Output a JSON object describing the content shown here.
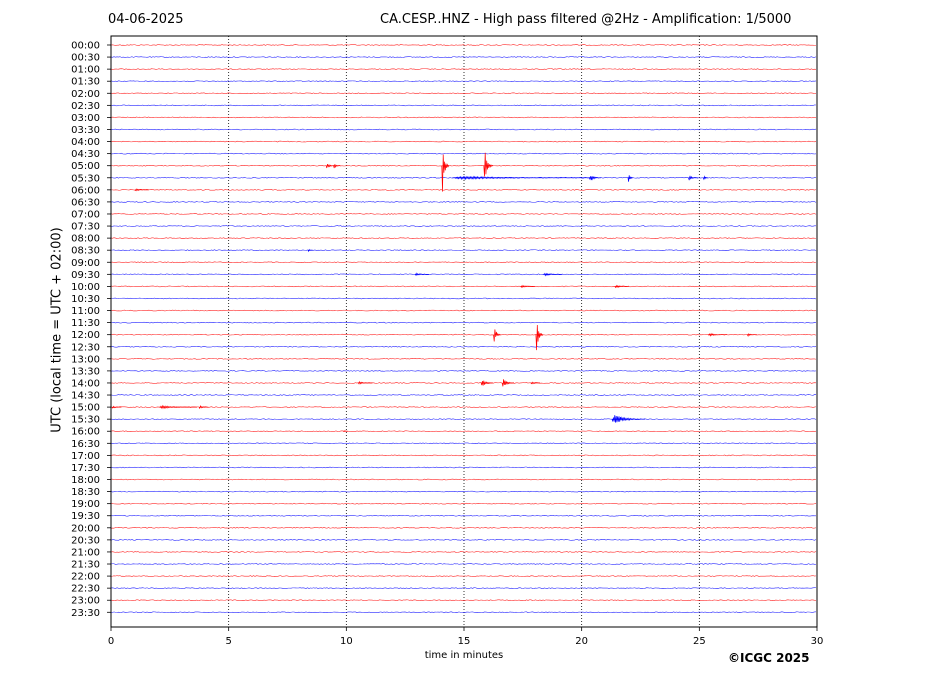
{
  "header": {
    "date": "04-06-2025",
    "title": "CA.CESP..HNZ - High pass filtered @2Hz - Amplification: 1/5000"
  },
  "footer": {
    "copyright": "©ICGC 2025"
  },
  "chart_data": {
    "type": "line",
    "title": "CA.CESP..HNZ - High pass filtered @2Hz - Amplification: 1/5000",
    "xlabel": "time in minutes",
    "ylabel": "UTC (local time = UTC + 02:00)",
    "xlim": [
      0,
      30
    ],
    "x_ticks": [
      0,
      5,
      10,
      15,
      20,
      25,
      30
    ],
    "grid": "vertical dotted lines at 5, 10, 15, 20, 25",
    "colors": {
      "odd_trace": "#ff0000",
      "even_trace": "#0000ff",
      "grid": "#000000"
    },
    "rows": [
      "00:00",
      "00:30",
      "01:00",
      "01:30",
      "02:00",
      "02:30",
      "03:00",
      "03:30",
      "04:00",
      "04:30",
      "05:00",
      "05:30",
      "06:00",
      "06:30",
      "07:00",
      "07:30",
      "08:00",
      "08:30",
      "09:00",
      "09:30",
      "10:00",
      "10:30",
      "11:00",
      "11:30",
      "12:00",
      "12:30",
      "13:00",
      "13:30",
      "14:00",
      "14:30",
      "15:00",
      "15:30",
      "16:00",
      "16:30",
      "17:00",
      "17:30",
      "18:00",
      "18:30",
      "19:00",
      "19:30",
      "20:00",
      "20:30",
      "21:00",
      "21:30",
      "22:00",
      "22:30",
      "23:00",
      "23:30"
    ],
    "events": [
      {
        "row": "05:00",
        "minute": 9.2,
        "amplitude": 4,
        "duration": 0.4
      },
      {
        "row": "05:00",
        "minute": 9.5,
        "amplitude": 4,
        "duration": 0.3
      },
      {
        "row": "05:00",
        "minute": 14.1,
        "amplitude": 40,
        "duration": 0.3
      },
      {
        "row": "05:00",
        "minute": 15.9,
        "amplitude": 24,
        "duration": 0.4
      },
      {
        "row": "05:30",
        "minute": 15.4,
        "amplitude": 2,
        "duration": 6.0
      },
      {
        "row": "05:30",
        "minute": 20.4,
        "amplitude": 5,
        "duration": 0.5
      },
      {
        "row": "05:30",
        "minute": 22.0,
        "amplitude": 8,
        "duration": 0.2
      },
      {
        "row": "05:30",
        "minute": 24.6,
        "amplitude": 4,
        "duration": 0.4
      },
      {
        "row": "05:30",
        "minute": 25.2,
        "amplitude": 4,
        "duration": 0.2
      },
      {
        "row": "06:00",
        "minute": 1.1,
        "amplitude": 2,
        "duration": 0.6
      },
      {
        "row": "08:30",
        "minute": 8.4,
        "amplitude": 2,
        "duration": 0.2
      },
      {
        "row": "09:30",
        "minute": 13.0,
        "amplitude": 2,
        "duration": 0.6
      },
      {
        "row": "09:30",
        "minute": 18.5,
        "amplitude": 2,
        "duration": 0.8
      },
      {
        "row": "10:00",
        "minute": 17.5,
        "amplitude": 2,
        "duration": 0.6
      },
      {
        "row": "10:00",
        "minute": 21.5,
        "amplitude": 2,
        "duration": 0.6
      },
      {
        "row": "12:00",
        "minute": 16.3,
        "amplitude": 14,
        "duration": 0.3
      },
      {
        "row": "12:00",
        "minute": 18.1,
        "amplitude": 24,
        "duration": 0.3
      },
      {
        "row": "12:00",
        "minute": 25.5,
        "amplitude": 2,
        "duration": 0.8
      },
      {
        "row": "12:00",
        "minute": 27.1,
        "amplitude": 2,
        "duration": 0.4
      },
      {
        "row": "14:00",
        "minute": 10.6,
        "amplitude": 2,
        "duration": 0.6
      },
      {
        "row": "14:00",
        "minute": 15.8,
        "amplitude": 6,
        "duration": 0.5
      },
      {
        "row": "14:00",
        "minute": 16.7,
        "amplitude": 7,
        "duration": 0.5
      },
      {
        "row": "14:00",
        "minute": 17.9,
        "amplitude": 2,
        "duration": 0.4
      },
      {
        "row": "15:00",
        "minute": 0.1,
        "amplitude": 2,
        "duration": 0.4
      },
      {
        "row": "15:00",
        "minute": 2.3,
        "amplitude": 2,
        "duration": 1.6
      },
      {
        "row": "15:00",
        "minute": 3.8,
        "amplitude": 2,
        "duration": 0.4
      },
      {
        "row": "15:30",
        "minute": 21.5,
        "amplitude": 7,
        "duration": 1.4
      },
      {
        "row": "16:00",
        "minute": 9.9,
        "amplitude": 1,
        "duration": 0.2
      }
    ]
  }
}
